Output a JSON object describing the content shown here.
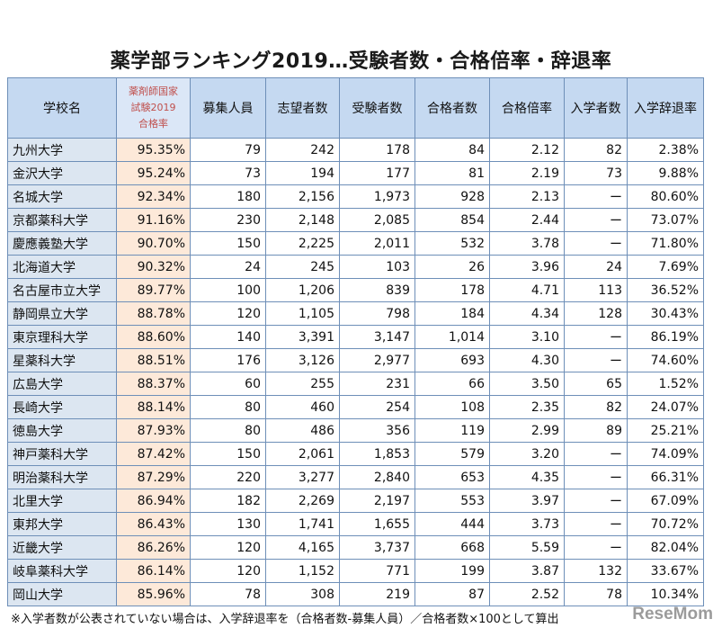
{
  "title": "薬学部ランキング2019…受験者数・合格倍率・辞退率",
  "table": {
    "headers": [
      "学校名",
      "薬剤師国家\n試験2019\n合格率",
      "募集人員",
      "志望者数",
      "受験者数",
      "合格者数",
      "合格倍率",
      "入学者数",
      "入学辞退率"
    ],
    "rate_header_lines": [
      "薬剤師国家",
      "試験2019",
      "合格率"
    ],
    "rows": [
      [
        "九州大学",
        "95.35%",
        "79",
        "242",
        "178",
        "84",
        "2.12",
        "82",
        "2.38%"
      ],
      [
        "金沢大学",
        "95.24%",
        "73",
        "194",
        "177",
        "81",
        "2.19",
        "73",
        "9.88%"
      ],
      [
        "名城大学",
        "92.34%",
        "180",
        "2,156",
        "1,973",
        "928",
        "2.13",
        "ー",
        "80.60%"
      ],
      [
        "京都薬科大学",
        "91.16%",
        "230",
        "2,148",
        "2,085",
        "854",
        "2.44",
        "ー",
        "73.07%"
      ],
      [
        "慶應義塾大学",
        "90.70%",
        "150",
        "2,225",
        "2,011",
        "532",
        "3.78",
        "ー",
        "71.80%"
      ],
      [
        "北海道大学",
        "90.32%",
        "24",
        "245",
        "103",
        "26",
        "3.96",
        "24",
        "7.69%"
      ],
      [
        "名古屋市立大学",
        "89.77%",
        "100",
        "1,206",
        "839",
        "178",
        "4.71",
        "113",
        "36.52%"
      ],
      [
        "静岡県立大学",
        "88.78%",
        "120",
        "1,105",
        "798",
        "184",
        "4.34",
        "128",
        "30.43%"
      ],
      [
        "東京理科大学",
        "88.60%",
        "140",
        "3,391",
        "3,147",
        "1,014",
        "3.10",
        "ー",
        "86.19%"
      ],
      [
        "星薬科大学",
        "88.51%",
        "176",
        "3,126",
        "2,977",
        "693",
        "4.30",
        "ー",
        "74.60%"
      ],
      [
        "広島大学",
        "88.37%",
        "60",
        "255",
        "231",
        "66",
        "3.50",
        "65",
        "1.52%"
      ],
      [
        "長崎大学",
        "88.14%",
        "80",
        "460",
        "254",
        "108",
        "2.35",
        "82",
        "24.07%"
      ],
      [
        "徳島大学",
        "87.93%",
        "80",
        "486",
        "356",
        "119",
        "2.99",
        "89",
        "25.21%"
      ],
      [
        "神戸薬科大学",
        "87.42%",
        "150",
        "2,061",
        "1,853",
        "579",
        "3.20",
        "ー",
        "74.09%"
      ],
      [
        "明治薬科大学",
        "87.29%",
        "220",
        "3,277",
        "2,840",
        "653",
        "4.35",
        "ー",
        "66.31%"
      ],
      [
        "北里大学",
        "86.94%",
        "182",
        "2,269",
        "2,197",
        "553",
        "3.97",
        "ー",
        "67.09%"
      ],
      [
        "東邦大学",
        "86.43%",
        "130",
        "1,741",
        "1,655",
        "444",
        "3.73",
        "ー",
        "70.72%"
      ],
      [
        "近畿大学",
        "86.26%",
        "120",
        "4,165",
        "3,737",
        "668",
        "5.59",
        "ー",
        "82.04%"
      ],
      [
        "岐阜薬科大学",
        "86.14%",
        "120",
        "1,152",
        "771",
        "199",
        "3.87",
        "132",
        "33.67%"
      ],
      [
        "岡山大学",
        "85.96%",
        "78",
        "308",
        "219",
        "87",
        "2.52",
        "78",
        "10.34%"
      ]
    ]
  },
  "footnote": "※入学者数が公表されていない場合は、入学辞退率を（合格者数-募集人員）／合格者数×100として算出",
  "watermark": "ReseMom"
}
